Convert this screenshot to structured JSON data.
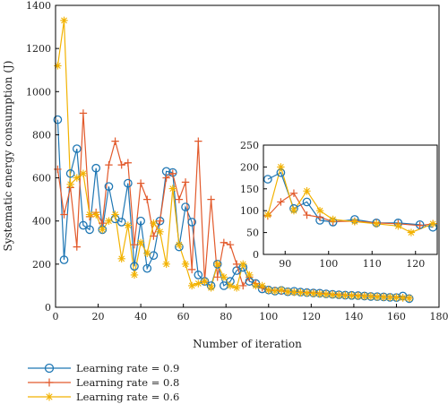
{
  "chart_data": {
    "type": "line",
    "title": "",
    "xlabel": "Number of iteration",
    "ylabel": "Systematic energy consumption (J)",
    "xlim": [
      0,
      180
    ],
    "ylim": [
      0,
      1400
    ],
    "xticks": [
      0,
      20,
      40,
      60,
      80,
      100,
      120,
      140,
      160,
      180
    ],
    "yticks": [
      0,
      200,
      400,
      600,
      800,
      1000,
      1200,
      1400
    ],
    "legend_position": "bottom-left-outside",
    "grid": false,
    "series": [
      {
        "name": "Learning rate = 0.9",
        "color": "#1f77b4",
        "marker": "circle",
        "x": [
          1,
          4,
          7,
          10,
          13,
          16,
          19,
          22,
          25,
          28,
          31,
          34,
          37,
          40,
          43,
          46,
          49,
          52,
          55,
          58,
          61,
          64,
          67,
          70,
          73,
          76,
          79,
          82,
          85,
          88,
          91,
          94,
          97,
          100,
          103,
          106,
          109,
          112,
          115,
          118,
          121,
          124,
          127,
          130,
          133,
          136,
          139,
          142,
          145,
          148,
          151,
          154,
          157,
          160,
          163,
          166
        ],
        "y": [
          870,
          220,
          620,
          735,
          380,
          360,
          645,
          360,
          560,
          410,
          395,
          575,
          190,
          400,
          180,
          240,
          400,
          630,
          625,
          280,
          465,
          395,
          150,
          120,
          100,
          200,
          100,
          120,
          170,
          185,
          120,
          110,
          85,
          80,
          75,
          78,
          72,
          74,
          70,
          68,
          66,
          65,
          62,
          60,
          58,
          56,
          55,
          54,
          52,
          50,
          49,
          48,
          46,
          45,
          52,
          40
        ]
      },
      {
        "name": "Learning rate = 0.8",
        "color": "#e25a2c",
        "marker": "plus",
        "x": [
          1,
          4,
          7,
          10,
          13,
          16,
          19,
          22,
          25,
          28,
          31,
          34,
          37,
          40,
          43,
          46,
          49,
          52,
          55,
          58,
          61,
          64,
          67,
          70,
          73,
          76,
          79,
          82,
          85,
          88,
          91,
          94,
          97,
          100,
          103,
          106,
          109,
          112,
          115,
          118,
          121,
          124,
          127,
          130,
          133,
          136,
          139,
          142,
          145,
          148,
          151,
          154,
          157,
          160,
          163,
          166
        ],
        "y": [
          640,
          430,
          555,
          280,
          900,
          420,
          440,
          390,
          660,
          770,
          660,
          670,
          290,
          575,
          500,
          330,
          400,
          600,
          620,
          500,
          580,
          175,
          770,
          120,
          500,
          140,
          300,
          290,
          200,
          100,
          140,
          110,
          90,
          80,
          78,
          75,
          72,
          70,
          69,
          68,
          66,
          64,
          62,
          60,
          58,
          56,
          55,
          54,
          52,
          51,
          49,
          48,
          47,
          46,
          44,
          42
        ]
      },
      {
        "name": "Learning rate = 0.6",
        "color": "#f2b200",
        "marker": "asterisk",
        "x": [
          1,
          4,
          7,
          10,
          13,
          16,
          19,
          22,
          25,
          28,
          31,
          34,
          37,
          40,
          43,
          46,
          49,
          52,
          55,
          58,
          61,
          64,
          67,
          70,
          73,
          76,
          79,
          82,
          85,
          88,
          91,
          94,
          97,
          100,
          103,
          106,
          109,
          112,
          115,
          118,
          121,
          124,
          127,
          130,
          133,
          136,
          139,
          142,
          145,
          148,
          151,
          154,
          157,
          160,
          163,
          166
        ],
        "y": [
          1120,
          1330,
          570,
          600,
          620,
          430,
          430,
          360,
          400,
          430,
          225,
          380,
          150,
          300,
          250,
          390,
          350,
          200,
          550,
          290,
          200,
          100,
          110,
          120,
          90,
          200,
          140,
          100,
          90,
          200,
          150,
          100,
          100,
          80,
          75,
          80,
          72,
          70,
          68,
          66,
          64,
          62,
          60,
          58,
          56,
          55,
          54,
          52,
          51,
          50,
          48,
          47,
          46,
          45,
          44,
          42
        ]
      }
    ],
    "inset": {
      "xlim": [
        85,
        125
      ],
      "ylim": [
        0,
        250
      ],
      "xticks": [
        90,
        100,
        110,
        120
      ],
      "yticks": [
        0,
        50,
        100,
        150,
        200,
        250
      ],
      "series": [
        {
          "name": "Learning rate = 0.9",
          "x": [
            86,
            89,
            92,
            95,
            98,
            101,
            106,
            111,
            116,
            121,
            124
          ],
          "y": [
            172,
            187,
            105,
            120,
            78,
            74,
            80,
            72,
            72,
            68,
            62
          ]
        },
        {
          "name": "Learning rate = 0.8",
          "x": [
            86,
            89,
            92,
            95,
            98,
            101,
            106,
            111,
            116,
            121,
            124
          ],
          "y": [
            88,
            120,
            140,
            90,
            85,
            75,
            76,
            72,
            70,
            66,
            70
          ]
        },
        {
          "name": "Learning rate = 0.6",
          "x": [
            86,
            89,
            92,
            95,
            98,
            101,
            106,
            111,
            116,
            119,
            124
          ],
          "y": [
            90,
            200,
            100,
            145,
            100,
            80,
            75,
            70,
            65,
            50,
            70
          ]
        }
      ]
    }
  }
}
